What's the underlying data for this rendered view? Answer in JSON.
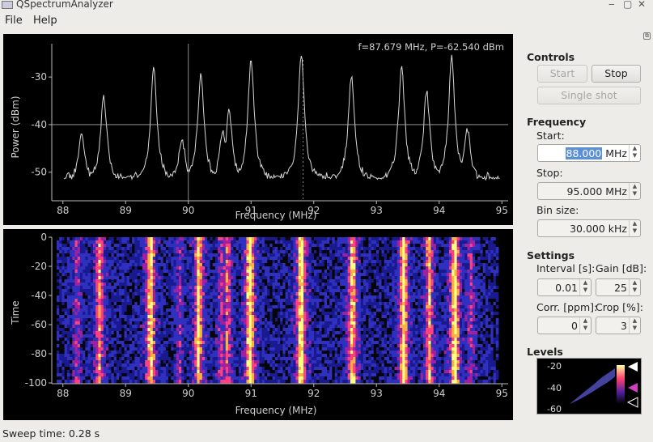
{
  "window": {
    "title": "QSpectrumAnalyzer",
    "min": "‒",
    "max": "▢",
    "close": "✕"
  },
  "menu": {
    "file": "File",
    "help": "Help"
  },
  "spectrum": {
    "readout": "f=87.679 MHz, P=-62.540 dBm",
    "xlabel": "Frequency (MHz)",
    "ylabel": "Power (dBm)",
    "xticks": [
      "88",
      "89",
      "90",
      "91",
      "92",
      "93",
      "94",
      "95"
    ],
    "yticks": [
      "-30",
      "-40",
      "-50"
    ]
  },
  "waterfall": {
    "xlabel": "Frequency (MHz)",
    "ylabel": "Time",
    "xticks": [
      "88",
      "89",
      "90",
      "91",
      "92",
      "93",
      "94",
      "95"
    ],
    "yticks": [
      "0",
      "-20",
      "-40",
      "-60",
      "-80",
      "-100"
    ]
  },
  "chart_data": {
    "type": "line",
    "xlabel": "Frequency (MHz)",
    "ylabel": "Power (dBm)",
    "xlim": [
      87.9,
      95.1
    ],
    "ylim": [
      -56,
      -23
    ],
    "baseline": -52,
    "peaks": [
      {
        "f": 88.3,
        "p": -42
      },
      {
        "f": 88.65,
        "p": -34
      },
      {
        "f": 89.45,
        "p": -28
      },
      {
        "f": 89.9,
        "p": -43
      },
      {
        "f": 90.2,
        "p": -29
      },
      {
        "f": 90.55,
        "p": -41
      },
      {
        "f": 90.65,
        "p": -37
      },
      {
        "f": 91.0,
        "p": -26
      },
      {
        "f": 91.8,
        "p": -25
      },
      {
        "f": 92.6,
        "p": -30
      },
      {
        "f": 93.4,
        "p": -28
      },
      {
        "f": 93.8,
        "p": -33
      },
      {
        "f": 94.2,
        "p": -26
      },
      {
        "f": 94.45,
        "p": -41
      }
    ],
    "cursor": {
      "x": 90.0,
      "y": -40.0
    }
  },
  "controls": {
    "title": "Controls",
    "start": "Start",
    "stop": "Stop",
    "single": "Single shot"
  },
  "frequency": {
    "title": "Frequency",
    "start_label": "Start:",
    "start_value": "88.000",
    "start_unit": " MHz",
    "stop_label": "Stop:",
    "stop_value": "95.000 MHz",
    "bin_label": "Bin size:",
    "bin_value": "30.000 kHz"
  },
  "settings": {
    "title": "Settings",
    "interval_label": "Interval [s]:",
    "gain_label": "Gain [dB]:",
    "interval": "0.01",
    "gain": "25",
    "corr_label": "Corr. [ppm]:",
    "crop_label": "Crop [%]:",
    "corr": "0",
    "crop": "3"
  },
  "levels": {
    "title": "Levels",
    "ticks": [
      "-20",
      "-40",
      "-60"
    ]
  },
  "status": {
    "sweep": "Sweep time: 0.28 s"
  },
  "colors": {
    "trace": "#d8d8d8",
    "hot": "#ffff80",
    "warm": "#ff4080",
    "cool": "#3030c0",
    "bg": "#000000"
  }
}
